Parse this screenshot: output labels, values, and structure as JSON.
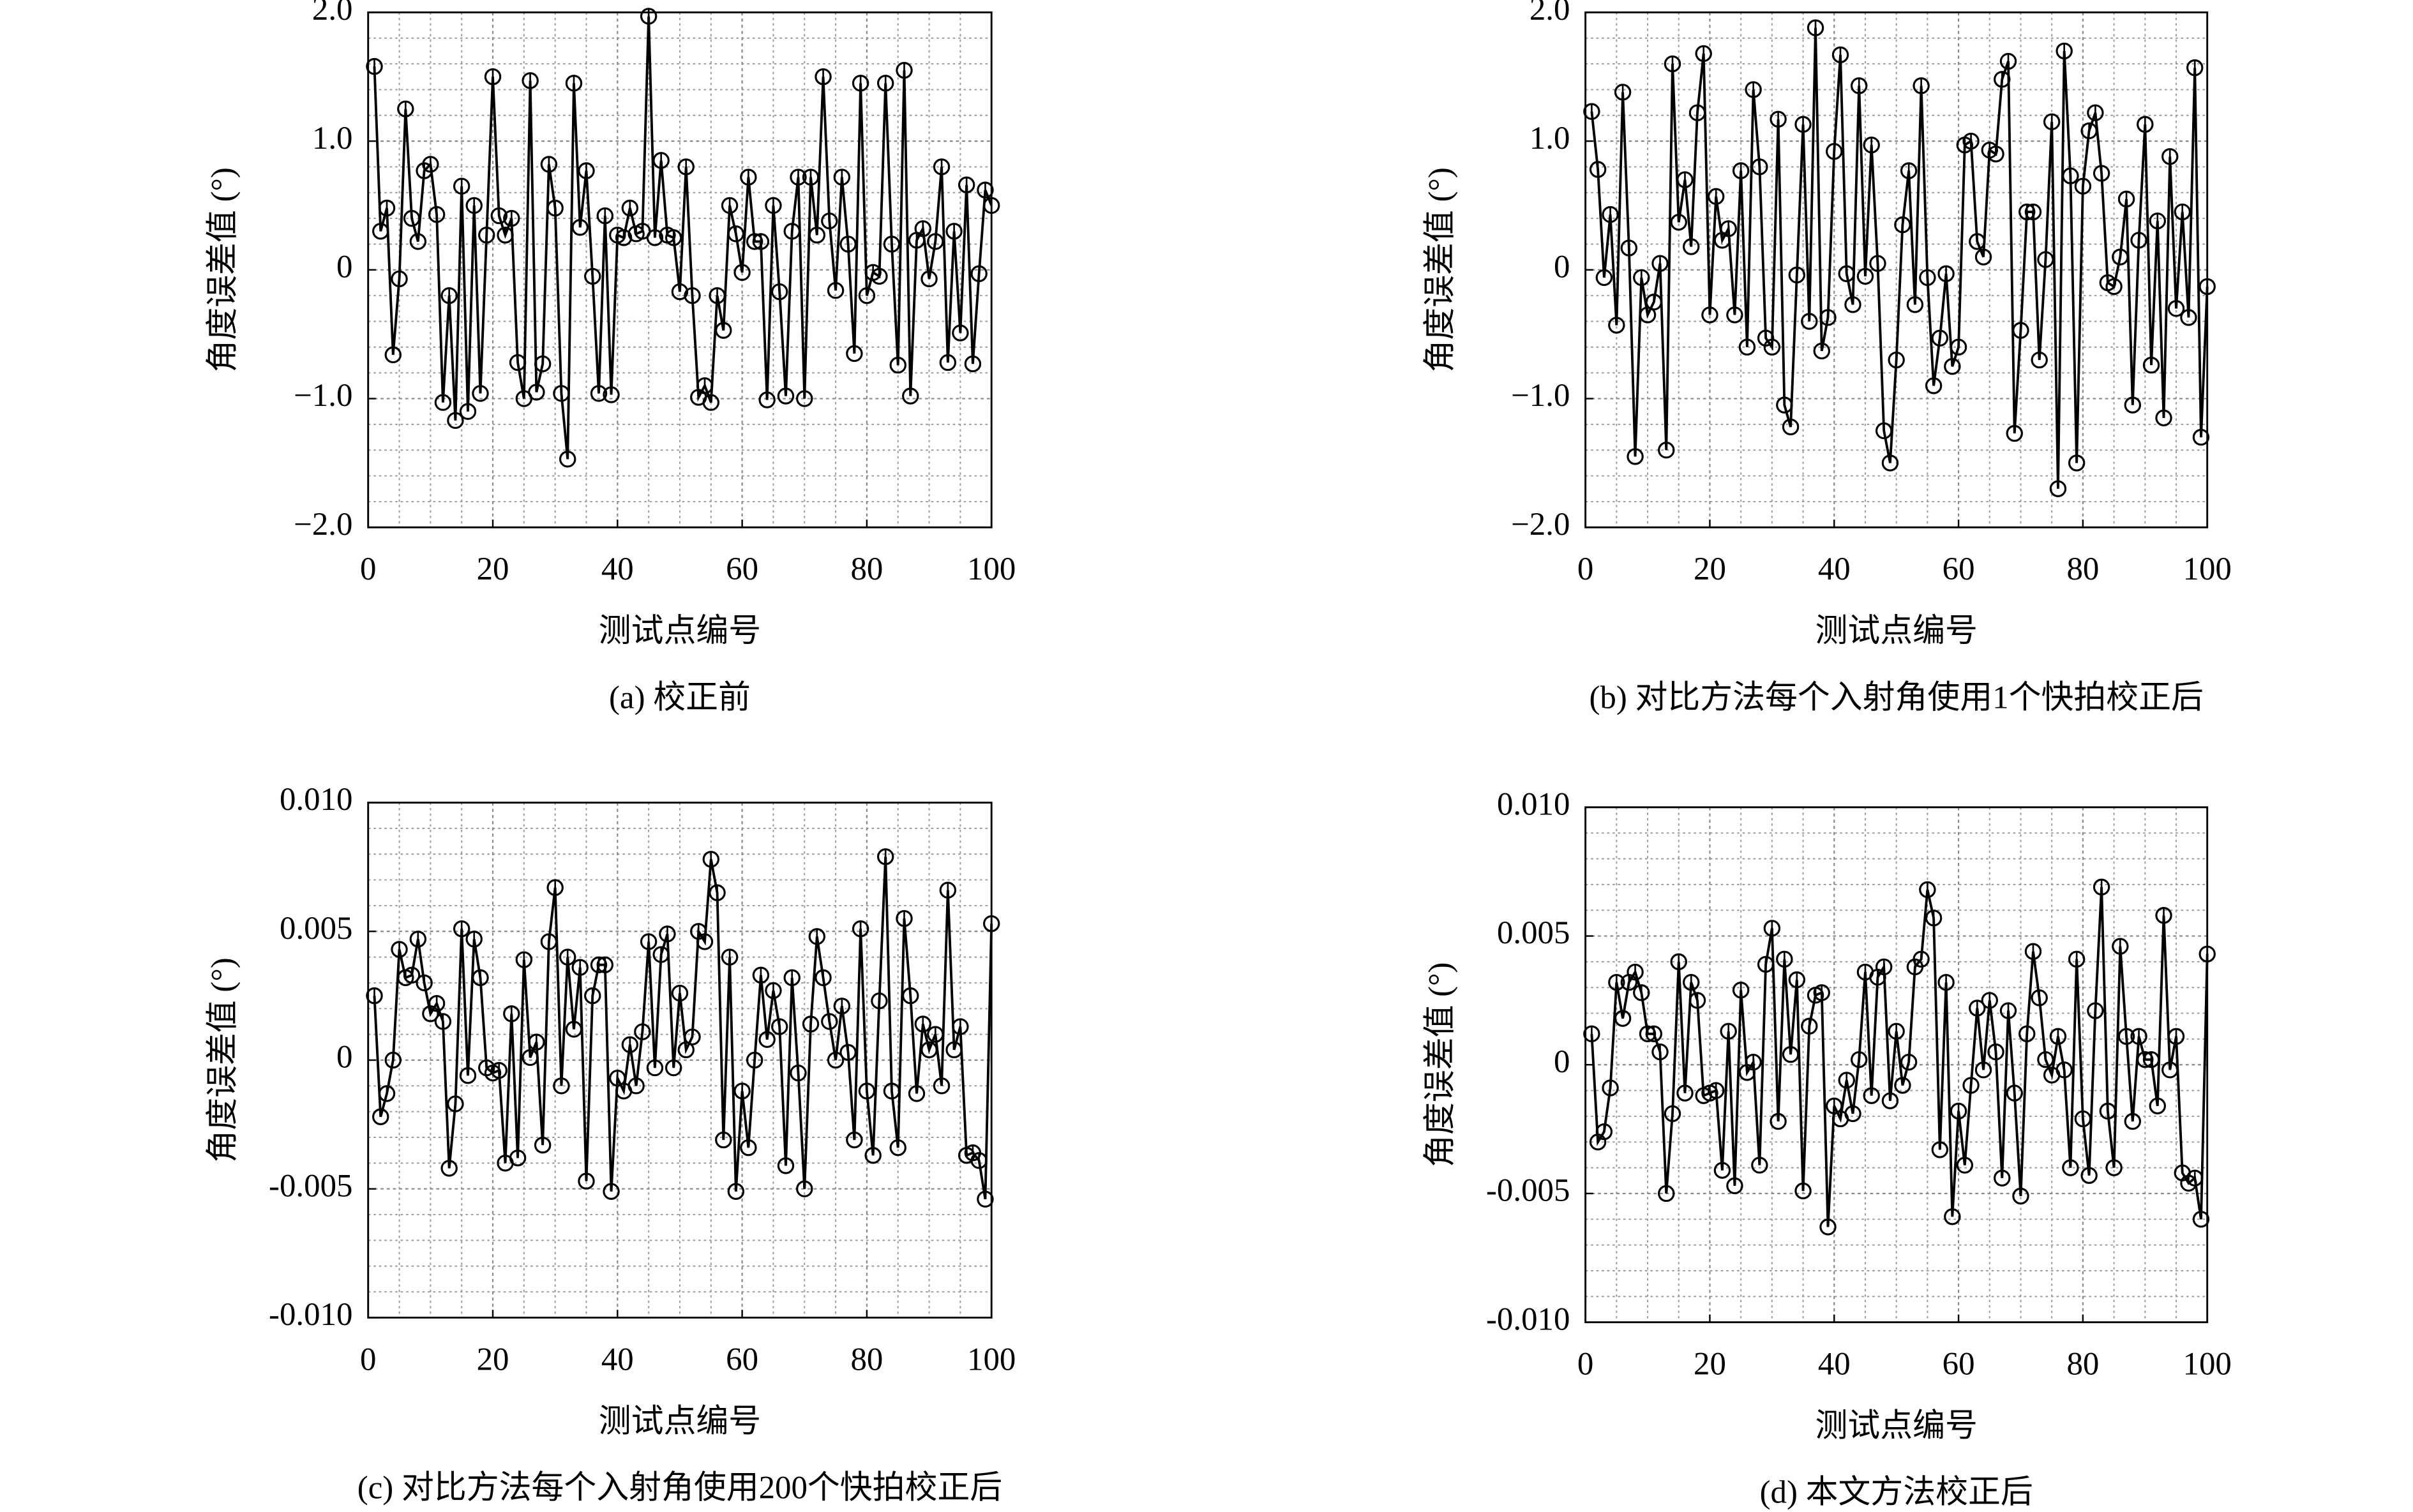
{
  "chart_data": [
    {
      "type": "line",
      "caption": "(a) 校正前",
      "xlabel": "测试点编号",
      "ylabel": "角度误差值 (°)",
      "color": "#000000",
      "grid": true,
      "minor_grid": true,
      "marker": "circle",
      "xlim": [
        0,
        100
      ],
      "xticks": [
        0,
        20,
        40,
        60,
        80,
        100
      ],
      "ylim": [
        -2,
        2
      ],
      "yticks": [
        {
          "value": 2,
          "label": "2.0"
        },
        {
          "value": 1,
          "label": "1.0"
        },
        0,
        {
          "value": -1,
          "label": "−1.0"
        },
        {
          "value": -2,
          "label": "−2.0"
        }
      ],
      "x": [
        1,
        2,
        3,
        4,
        5,
        6,
        7,
        8,
        9,
        10,
        11,
        12,
        13,
        14,
        15,
        16,
        17,
        18,
        19,
        20,
        21,
        22,
        23,
        24,
        25,
        26,
        27,
        28,
        29,
        30,
        31,
        32,
        33,
        34,
        35,
        36,
        37,
        38,
        39,
        40,
        41,
        42,
        43,
        44,
        45,
        46,
        47,
        48,
        49,
        50,
        51,
        52,
        53,
        54,
        55,
        56,
        57,
        58,
        59,
        60,
        61,
        62,
        63,
        64,
        65,
        66,
        67,
        68,
        69,
        70,
        71,
        72,
        73,
        74,
        75,
        76,
        77,
        78,
        79,
        80,
        81,
        82,
        83,
        84,
        85,
        86,
        87,
        88,
        89,
        90,
        91,
        92,
        93,
        94,
        95,
        96,
        97,
        98,
        99,
        100
      ],
      "values": [
        1.58,
        0.3,
        0.48,
        -0.66,
        -0.07,
        1.25,
        0.4,
        0.22,
        0.77,
        0.82,
        0.43,
        -1.03,
        -0.2,
        -1.17,
        0.65,
        -1.1,
        0.5,
        -0.96,
        0.27,
        1.5,
        0.42,
        0.27,
        0.4,
        -0.72,
        -1.0,
        1.47,
        -0.95,
        -0.73,
        0.82,
        0.48,
        -0.96,
        -1.47,
        1.45,
        0.33,
        0.77,
        -0.05,
        -0.96,
        0.42,
        -0.97,
        0.27,
        0.25,
        0.48,
        0.28,
        0.3,
        1.97,
        0.25,
        0.85,
        0.27,
        0.25,
        -0.17,
        0.8,
        -0.2,
        -0.99,
        -0.9,
        -1.03,
        -0.2,
        -0.47,
        0.5,
        0.28,
        -0.02,
        0.72,
        0.22,
        0.22,
        -1.01,
        0.5,
        -0.17,
        -0.98,
        0.3,
        0.72,
        -1.0,
        0.72,
        0.27,
        1.5,
        0.38,
        -0.16,
        0.72,
        0.2,
        -0.65,
        1.45,
        -0.2,
        -0.02,
        -0.05,
        1.45,
        0.2,
        -0.74,
        1.55,
        -0.98,
        0.23,
        0.32,
        -0.07,
        0.22,
        0.8,
        -0.72,
        0.3,
        -0.49,
        0.66,
        -0.73,
        -0.03,
        0.62,
        0.5
      ]
    },
    {
      "type": "line",
      "caption": "(b) 对比方法每个入射角使用1个快拍校正后",
      "xlabel": "测试点编号",
      "ylabel": "角度误差值 (°)",
      "color": "#000000",
      "grid": true,
      "minor_grid": true,
      "marker": "circle",
      "xlim": [
        0,
        100
      ],
      "xticks": [
        0,
        20,
        40,
        60,
        80,
        100
      ],
      "ylim": [
        -2,
        2
      ],
      "yticks": [
        {
          "value": 2,
          "label": "2.0"
        },
        {
          "value": 1,
          "label": "1.0"
        },
        0,
        {
          "value": -1,
          "label": "−1.0"
        },
        {
          "value": -2,
          "label": "−2.0"
        }
      ],
      "x": [
        1,
        2,
        3,
        4,
        5,
        6,
        7,
        8,
        9,
        10,
        11,
        12,
        13,
        14,
        15,
        16,
        17,
        18,
        19,
        20,
        21,
        22,
        23,
        24,
        25,
        26,
        27,
        28,
        29,
        30,
        31,
        32,
        33,
        34,
        35,
        36,
        37,
        38,
        39,
        40,
        41,
        42,
        43,
        44,
        45,
        46,
        47,
        48,
        49,
        50,
        51,
        52,
        53,
        54,
        55,
        56,
        57,
        58,
        59,
        60,
        61,
        62,
        63,
        64,
        65,
        66,
        67,
        68,
        69,
        70,
        71,
        72,
        73,
        74,
        75,
        76,
        77,
        78,
        79,
        80,
        81,
        82,
        83,
        84,
        85,
        86,
        87,
        88,
        89,
        90,
        91,
        92,
        93,
        94,
        95,
        96,
        97,
        98,
        99,
        100
      ],
      "values": [
        1.23,
        0.78,
        -0.06,
        0.43,
        -0.43,
        1.38,
        0.17,
        -1.45,
        -0.06,
        -0.35,
        -0.25,
        0.05,
        -1.4,
        1.6,
        0.37,
        0.7,
        0.18,
        1.22,
        1.68,
        -0.35,
        0.57,
        0.23,
        0.32,
        -0.35,
        0.77,
        -0.6,
        1.4,
        0.8,
        -0.53,
        -0.6,
        1.17,
        -1.05,
        -1.22,
        -0.04,
        1.13,
        -0.4,
        1.88,
        -0.63,
        -0.37,
        0.92,
        1.67,
        -0.03,
        -0.27,
        1.43,
        -0.05,
        0.97,
        0.05,
        -1.25,
        -1.5,
        -0.7,
        0.35,
        0.77,
        -0.27,
        1.43,
        -0.06,
        -0.9,
        -0.53,
        -0.03,
        -0.75,
        -0.6,
        0.97,
        1.0,
        0.22,
        0.1,
        0.93,
        0.9,
        1.48,
        1.62,
        -1.27,
        -0.47,
        0.45,
        0.45,
        -0.7,
        0.08,
        1.15,
        -1.7,
        1.7,
        0.73,
        -1.5,
        0.65,
        1.08,
        1.22,
        0.75,
        -0.1,
        -0.13,
        0.1,
        0.55,
        -1.05,
        0.23,
        1.13,
        -0.74,
        0.38,
        -1.15,
        0.88,
        -0.3,
        0.45,
        -0.37,
        1.57,
        -1.3,
        -0.13
      ]
    },
    {
      "type": "line",
      "caption": "(c) 对比方法每个入射角使用200个快拍校正后",
      "xlabel": "测试点编号",
      "ylabel": "角度误差值 (°)",
      "color": "#000000",
      "grid": true,
      "minor_grid": true,
      "marker": "circle",
      "xlim": [
        0,
        100
      ],
      "xticks": [
        0,
        20,
        40,
        60,
        80,
        100
      ],
      "ylim": [
        -0.01,
        0.01
      ],
      "yticks": [
        {
          "value": 0.01,
          "label": "0.010"
        },
        0.005,
        0,
        -0.005,
        {
          "value": -0.01,
          "label": "-0.010"
        }
      ],
      "x": [
        1,
        2,
        3,
        4,
        5,
        6,
        7,
        8,
        9,
        10,
        11,
        12,
        13,
        14,
        15,
        16,
        17,
        18,
        19,
        20,
        21,
        22,
        23,
        24,
        25,
        26,
        27,
        28,
        29,
        30,
        31,
        32,
        33,
        34,
        35,
        36,
        37,
        38,
        39,
        40,
        41,
        42,
        43,
        44,
        45,
        46,
        47,
        48,
        49,
        50,
        51,
        52,
        53,
        54,
        55,
        56,
        57,
        58,
        59,
        60,
        61,
        62,
        63,
        64,
        65,
        66,
        67,
        68,
        69,
        70,
        71,
        72,
        73,
        74,
        75,
        76,
        77,
        78,
        79,
        80,
        81,
        82,
        83,
        84,
        85,
        86,
        87,
        88,
        89,
        90,
        91,
        92,
        93,
        94,
        95,
        96,
        97,
        98,
        99,
        100
      ],
      "values": [
        0.0025,
        -0.0022,
        -0.0013,
        0.0,
        0.0043,
        0.0032,
        0.0033,
        0.0047,
        0.003,
        0.0018,
        0.0022,
        0.0015,
        -0.0042,
        -0.0017,
        0.0051,
        -0.0006,
        0.0047,
        0.0032,
        -0.0003,
        -0.0005,
        -0.0004,
        -0.004,
        0.0018,
        -0.0038,
        0.0039,
        0.0001,
        0.0007,
        -0.0033,
        0.0046,
        0.0067,
        -0.001,
        0.004,
        0.0012,
        0.0036,
        -0.0047,
        0.0025,
        0.0037,
        0.0037,
        -0.0051,
        -0.0007,
        -0.0012,
        0.0006,
        -0.001,
        0.0011,
        0.0046,
        -0.0003,
        0.0041,
        0.0049,
        -0.0003,
        0.0026,
        0.0004,
        0.0009,
        0.005,
        0.0046,
        0.0078,
        0.0065,
        -0.0031,
        0.004,
        -0.0051,
        -0.0012,
        -0.0034,
        0.0,
        0.0033,
        0.0008,
        0.0027,
        0.0013,
        -0.0041,
        0.0032,
        -0.0005,
        -0.005,
        0.0014,
        0.0048,
        0.0032,
        0.0015,
        0.0,
        0.0021,
        0.0003,
        -0.0031,
        0.0051,
        -0.0012,
        -0.0037,
        0.0023,
        0.0079,
        -0.0012,
        -0.0034,
        0.0055,
        0.0025,
        -0.0013,
        0.0014,
        0.0004,
        0.001,
        -0.001,
        0.0066,
        0.0004,
        0.0013,
        -0.0037,
        -0.0036,
        -0.0039,
        -0.0054,
        0.0053
      ]
    },
    {
      "type": "line",
      "caption": "(d) 本文方法校正后",
      "xlabel": "测试点编号",
      "ylabel": "角度误差值 (°)",
      "color": "#000000",
      "grid": true,
      "minor_grid": true,
      "marker": "circle",
      "xlim": [
        0,
        100
      ],
      "xticks": [
        0,
        20,
        40,
        60,
        80,
        100
      ],
      "ylim": [
        -0.01,
        0.01
      ],
      "yticks": [
        {
          "value": 0.01,
          "label": "0.010"
        },
        0.005,
        0,
        -0.005,
        {
          "value": -0.01,
          "label": "-0.010"
        }
      ],
      "x": [
        1,
        2,
        3,
        4,
        5,
        6,
        7,
        8,
        9,
        10,
        11,
        12,
        13,
        14,
        15,
        16,
        17,
        18,
        19,
        20,
        21,
        22,
        23,
        24,
        25,
        26,
        27,
        28,
        29,
        30,
        31,
        32,
        33,
        34,
        35,
        36,
        37,
        38,
        39,
        40,
        41,
        42,
        43,
        44,
        45,
        46,
        47,
        48,
        49,
        50,
        51,
        52,
        53,
        54,
        55,
        56,
        57,
        58,
        59,
        60,
        61,
        62,
        63,
        64,
        65,
        66,
        67,
        68,
        69,
        70,
        71,
        72,
        73,
        74,
        75,
        76,
        77,
        78,
        79,
        80,
        81,
        82,
        83,
        84,
        85,
        86,
        87,
        88,
        89,
        90,
        91,
        92,
        93,
        94,
        95,
        96,
        97,
        98,
        99,
        100
      ],
      "values": [
        0.0012,
        -0.003,
        -0.0026,
        -0.0009,
        0.0032,
        0.0018,
        0.0032,
        0.0036,
        0.0028,
        0.0012,
        0.0012,
        0.0005,
        -0.005,
        -0.0019,
        0.004,
        -0.0011,
        0.0032,
        0.0025,
        -0.0012,
        -0.0011,
        -0.001,
        -0.0041,
        0.0013,
        -0.0047,
        0.0029,
        -0.0003,
        0.0001,
        -0.0039,
        0.0039,
        0.0053,
        -0.0022,
        0.0041,
        0.0004,
        0.0033,
        -0.0049,
        0.0015,
        0.0027,
        0.0028,
        -0.0063,
        -0.0016,
        -0.0021,
        -0.0006,
        -0.0019,
        0.0002,
        0.0036,
        -0.0012,
        0.0034,
        0.0038,
        -0.0014,
        0.0013,
        -0.0008,
        0.0001,
        0.0038,
        0.0041,
        0.0068,
        0.0057,
        -0.0033,
        0.0032,
        -0.0059,
        -0.0018,
        -0.0039,
        -0.0008,
        0.0022,
        -0.0002,
        0.0025,
        0.0005,
        -0.0044,
        0.0021,
        -0.0011,
        -0.0051,
        0.0012,
        0.0044,
        0.0026,
        0.0002,
        -0.0004,
        0.0011,
        -0.0002,
        -0.004,
        0.0041,
        -0.0021,
        -0.0043,
        0.0021,
        0.0069,
        -0.0018,
        -0.004,
        0.0046,
        0.0011,
        -0.0022,
        0.0011,
        0.0002,
        0.0002,
        -0.0016,
        0.0058,
        -0.0002,
        0.0011,
        -0.0042,
        -0.0046,
        -0.0044,
        -0.006,
        0.0043
      ]
    }
  ]
}
